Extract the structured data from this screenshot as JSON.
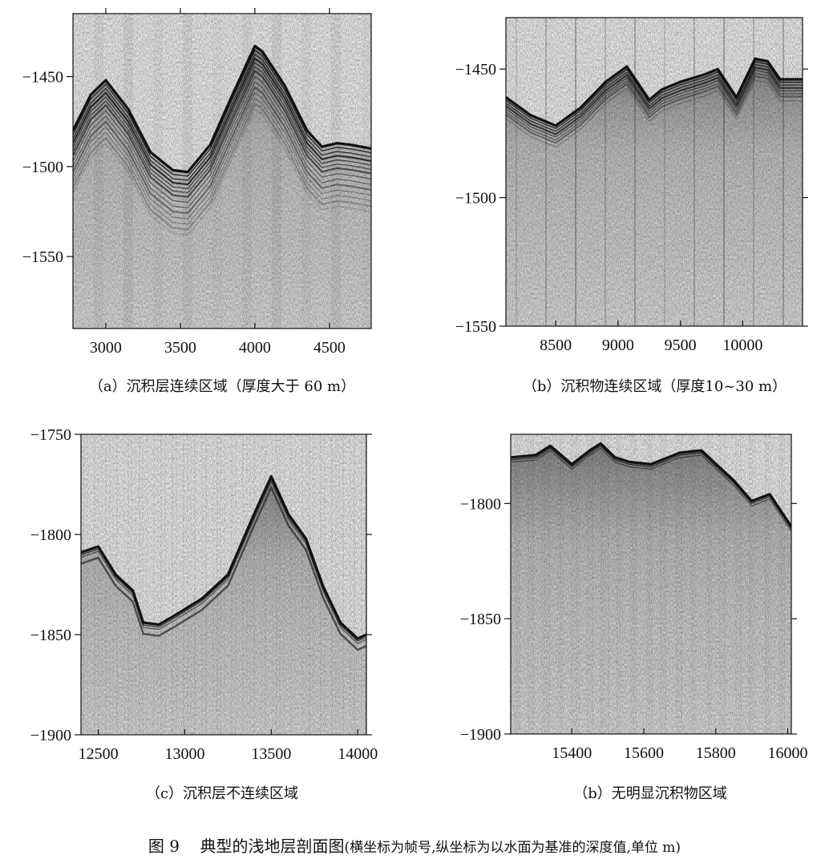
{
  "figure": {
    "label": "图 9",
    "title": "典型的浅地层剖面图",
    "note": "(横坐标为帧号,纵坐标为以水面为基准的深度值,单位 m)"
  },
  "chart_data": [
    {
      "id": "a",
      "type": "heatmap",
      "caption": "（a）沉积层连续区域（厚度大于 60 m）",
      "xlim": [
        2780,
        4780
      ],
      "ylim": [
        -1415,
        -1590
      ],
      "xticks": [
        3000,
        3500,
        4000,
        4500
      ],
      "yticks": [
        -1450,
        -1500,
        -1550
      ],
      "seabed": [
        [
          2780,
          -1480
        ],
        [
          2900,
          -1460
        ],
        [
          3000,
          -1452
        ],
        [
          3150,
          -1468
        ],
        [
          3300,
          -1492
        ],
        [
          3450,
          -1502
        ],
        [
          3550,
          -1503
        ],
        [
          3700,
          -1488
        ],
        [
          3850,
          -1460
        ],
        [
          4000,
          -1433
        ],
        [
          4050,
          -1436
        ],
        [
          4200,
          -1455
        ],
        [
          4350,
          -1480
        ],
        [
          4450,
          -1489
        ],
        [
          4550,
          -1487
        ],
        [
          4650,
          -1488
        ],
        [
          4780,
          -1490
        ]
      ]
    },
    {
      "id": "b1",
      "type": "heatmap",
      "caption": "（b）沉积物连续区域（厚度10~30 m）",
      "xlim": [
        8100,
        10480
      ],
      "ylim": [
        -1430,
        -1550
      ],
      "xticks": [
        8500,
        9000,
        9500,
        10000
      ],
      "yticks": [
        -1450,
        -1500,
        -1550
      ],
      "seabed": [
        [
          8100,
          -1461
        ],
        [
          8300,
          -1468
        ],
        [
          8500,
          -1472
        ],
        [
          8700,
          -1465
        ],
        [
          8900,
          -1455
        ],
        [
          9070,
          -1449
        ],
        [
          9250,
          -1462
        ],
        [
          9350,
          -1458
        ],
        [
          9500,
          -1455
        ],
        [
          9700,
          -1452
        ],
        [
          9800,
          -1450
        ],
        [
          9950,
          -1461
        ],
        [
          10100,
          -1446
        ],
        [
          10200,
          -1447
        ],
        [
          10300,
          -1454
        ],
        [
          10480,
          -1454
        ]
      ]
    },
    {
      "id": "c",
      "type": "heatmap",
      "caption": "（c）沉积层不连续区域",
      "xlim": [
        12400,
        14050
      ],
      "ylim": [
        -1750,
        -1900
      ],
      "xticks": [
        12500,
        13000,
        13500,
        14000
      ],
      "yticks": [
        -1750,
        -1800,
        -1850,
        -1900
      ],
      "seabed": [
        [
          12400,
          -1809
        ],
        [
          12500,
          -1806
        ],
        [
          12600,
          -1820
        ],
        [
          12700,
          -1828
        ],
        [
          12760,
          -1844
        ],
        [
          12850,
          -1845
        ],
        [
          12950,
          -1840
        ],
        [
          13100,
          -1832
        ],
        [
          13250,
          -1820
        ],
        [
          13400,
          -1790
        ],
        [
          13500,
          -1771
        ],
        [
          13600,
          -1790
        ],
        [
          13700,
          -1802
        ],
        [
          13800,
          -1826
        ],
        [
          13900,
          -1844
        ],
        [
          14000,
          -1852
        ],
        [
          14050,
          -1850
        ]
      ]
    },
    {
      "id": "b2",
      "type": "heatmap",
      "caption": "（b）无明显沉积物区域",
      "xlim": [
        15230,
        16010
      ],
      "ylim": [
        -1770,
        -1900
      ],
      "xticks": [
        15400,
        15600,
        15800,
        16000
      ],
      "yticks": [
        -1800,
        -1850,
        -1900
      ],
      "seabed": [
        [
          15230,
          -1780
        ],
        [
          15300,
          -1779
        ],
        [
          15340,
          -1775
        ],
        [
          15400,
          -1783
        ],
        [
          15450,
          -1777
        ],
        [
          15480,
          -1774
        ],
        [
          15520,
          -1780
        ],
        [
          15560,
          -1782
        ],
        [
          15620,
          -1783
        ],
        [
          15700,
          -1778
        ],
        [
          15760,
          -1777
        ],
        [
          15850,
          -1790
        ],
        [
          15900,
          -1799
        ],
        [
          15950,
          -1796
        ],
        [
          16010,
          -1810
        ]
      ]
    }
  ]
}
